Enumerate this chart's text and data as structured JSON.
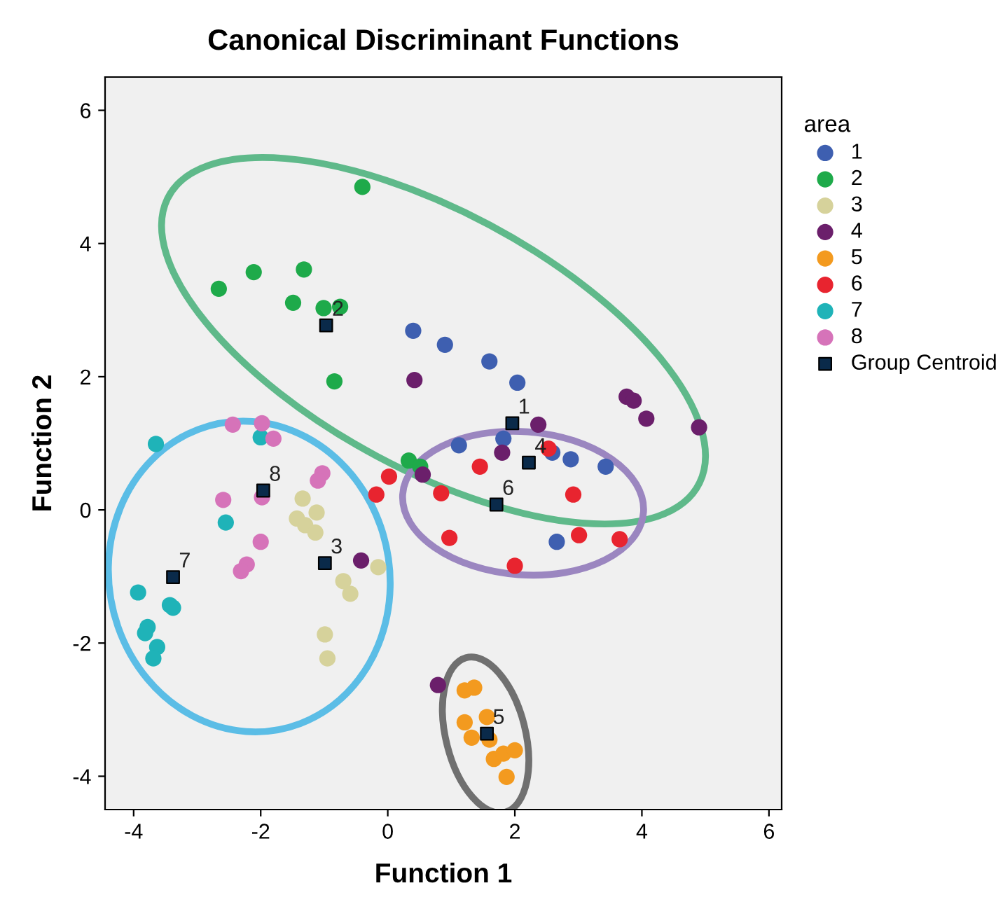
{
  "chart_data": {
    "type": "scatter",
    "title": "Canonical Discriminant Functions",
    "xlabel": "Function 1",
    "ylabel": "Function 2",
    "legend_title": "area",
    "legend": "right",
    "grid": false,
    "marker": "circle",
    "xlim": [
      -4.45,
      6.2
    ],
    "ylim": [
      -4.5,
      6.5
    ],
    "xticks": [
      -4,
      -2,
      0,
      2,
      4,
      6
    ],
    "yticks": [
      -4,
      -2,
      0,
      2,
      4,
      6
    ],
    "series": [
      {
        "name": "1",
        "color": "#3e5fb0",
        "x": [
          0.4,
          0.9,
          1.6,
          2.04,
          1.12,
          1.82,
          2.59,
          2.88,
          3.43,
          2.66
        ],
        "values": [
          2.69,
          2.48,
          2.23,
          1.91,
          0.97,
          1.07,
          0.86,
          0.76,
          0.65,
          -0.48
        ]
      },
      {
        "name": "2",
        "color": "#1eaa4a",
        "x": [
          -0.4,
          -2.11,
          -1.32,
          -2.66,
          -1.49,
          -1.01,
          -0.75,
          -0.84,
          0.33,
          0.51
        ],
        "values": [
          4.85,
          3.57,
          3.61,
          3.32,
          3.11,
          3.03,
          3.05,
          1.93,
          0.74,
          0.65
        ]
      },
      {
        "name": "3",
        "color": "#d6d29b",
        "x": [
          -1.34,
          -1.12,
          -1.43,
          -1.3,
          -1.14,
          -0.15,
          -0.7,
          -0.59,
          -0.99,
          -0.95
        ],
        "values": [
          0.17,
          -0.04,
          -0.13,
          -0.23,
          -0.34,
          -0.86,
          -1.07,
          -1.26,
          -1.87,
          -2.23
        ]
      },
      {
        "name": "4",
        "color": "#6b1f6b",
        "x": [
          0.42,
          3.76,
          3.87,
          4.07,
          4.9,
          2.37,
          1.8,
          0.55,
          -0.42,
          0.79
        ],
        "values": [
          1.95,
          1.7,
          1.64,
          1.37,
          1.24,
          1.28,
          0.86,
          0.53,
          -0.76,
          -2.63
        ]
      },
      {
        "name": "5",
        "color": "#f39a1f",
        "x": [
          1.21,
          1.36,
          1.21,
          1.56,
          1.32,
          1.6,
          1.67,
          1.82,
          2.0,
          1.87
        ],
        "values": [
          -2.71,
          -2.67,
          -3.19,
          -3.11,
          -3.42,
          -3.45,
          -3.74,
          -3.66,
          -3.61,
          -4.01
        ]
      },
      {
        "name": "6",
        "color": "#e8242f",
        "x": [
          2.53,
          1.45,
          2.92,
          0.97,
          3.01,
          3.65,
          2.0,
          0.84,
          0.02,
          -0.18
        ],
        "values": [
          0.92,
          0.65,
          0.23,
          -0.42,
          -0.38,
          -0.44,
          -0.84,
          0.25,
          0.5,
          0.23
        ]
      },
      {
        "name": "7",
        "color": "#1fb3b8",
        "x": [
          -3.65,
          -2.0,
          -2.55,
          -3.93,
          -3.43,
          -3.38,
          -3.78,
          -3.82,
          -3.63,
          -3.69
        ],
        "values": [
          0.99,
          1.09,
          -0.19,
          -1.24,
          -1.43,
          -1.47,
          -1.76,
          -1.85,
          -2.06,
          -2.23
        ]
      },
      {
        "name": "8",
        "color": "#d673b9",
        "x": [
          -2.44,
          -1.98,
          -1.8,
          -2.59,
          -1.98,
          -2.0,
          -2.22,
          -2.31,
          -1.03,
          -1.1
        ],
        "values": [
          1.28,
          1.3,
          1.07,
          0.15,
          0.19,
          -0.48,
          -0.82,
          -0.92,
          0.55,
          0.44
        ]
      },
      {
        "name": "Group Centroid",
        "color": "#0a2a4a",
        "marker": "square",
        "x": [
          1.96,
          -0.97,
          -0.99,
          2.22,
          1.56,
          1.71,
          -3.38,
          -1.96
        ],
        "values": [
          1.3,
          2.77,
          -0.8,
          0.71,
          -3.36,
          0.08,
          -1.01,
          0.29
        ]
      }
    ],
    "annotations": [
      {
        "text": "1",
        "x": 1.96,
        "y": 1.3
      },
      {
        "text": "2",
        "x": -0.97,
        "y": 2.77
      },
      {
        "text": "3",
        "x": -0.99,
        "y": -0.8
      },
      {
        "text": "4",
        "x": 2.22,
        "y": 0.71
      },
      {
        "text": "5",
        "x": 1.56,
        "y": -3.36
      },
      {
        "text": "6",
        "x": 1.71,
        "y": 0.08
      },
      {
        "text": "7",
        "x": -3.38,
        "y": -1.01
      },
      {
        "text": "8",
        "x": -1.96,
        "y": 0.29
      }
    ]
  }
}
